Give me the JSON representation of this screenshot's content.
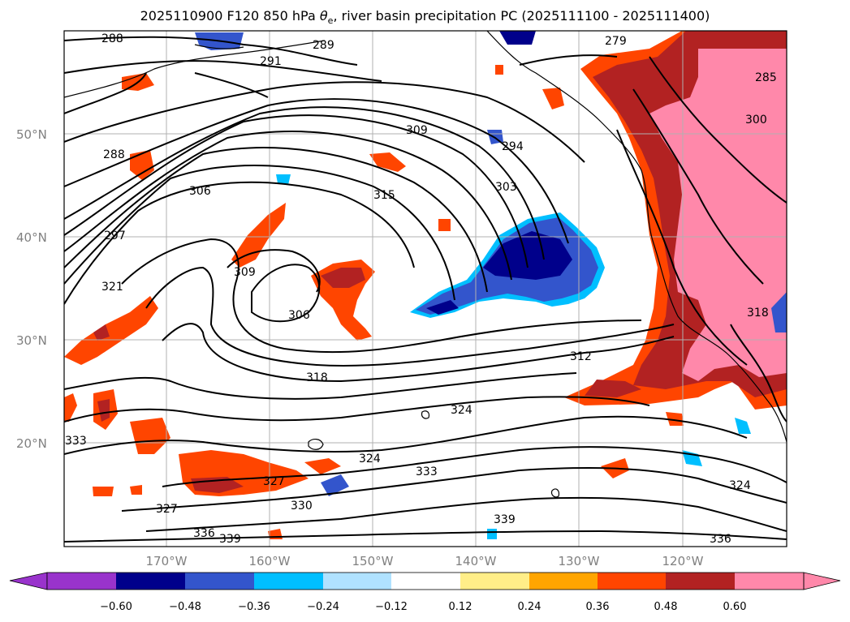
{
  "title": {
    "pre": "2025110900 F120 850 hPa ",
    "theta": "θ",
    "theta_sub": "e",
    "post": ", river basin precipitation PC (2025111100 - 2025111400)"
  },
  "map": {
    "lat_ticks": [
      "50°N",
      "40°N",
      "30°N",
      "20°N"
    ],
    "lon_ticks": [
      "170°W",
      "160°W",
      "150°W",
      "140°W",
      "130°W",
      "120°W"
    ],
    "grid": true,
    "contour_labels": [
      "288",
      "291",
      "289",
      "279",
      "285",
      "300",
      "288",
      "306",
      "297",
      "321",
      "309",
      "315",
      "309",
      "294",
      "303",
      "306",
      "318",
      "312",
      "324",
      "324",
      "333",
      "327",
      "330",
      "327",
      "336",
      "339",
      "339",
      "324",
      "336",
      "333",
      "318"
    ],
    "colors": {
      "strong_neg": "#00008b",
      "neg": "#3355cc",
      "weak_neg": "#00bfff",
      "very_weak_neg": "#b0e2ff",
      "weak_pos": "#ffee88",
      "pos": "#ffa500",
      "mid_pos": "#ff4500",
      "strong_pos": "#b22222",
      "extreme_pos": "#ff88aa",
      "extreme_neg": "#9933cc"
    }
  },
  "colorbar": {
    "labels": [
      "−0.60",
      "−0.48",
      "−0.36",
      "−0.24",
      "−0.12",
      "0.12",
      "0.24",
      "0.36",
      "0.48",
      "0.60"
    ],
    "colors": [
      "#9933cc",
      "#00008b",
      "#3355cc",
      "#3366cc",
      "#00bfff",
      "#b0e2ff",
      "#ffffff",
      "#ffee88",
      "#ffa500",
      "#ff4500",
      "#b22222",
      "#ff88aa"
    ]
  }
}
